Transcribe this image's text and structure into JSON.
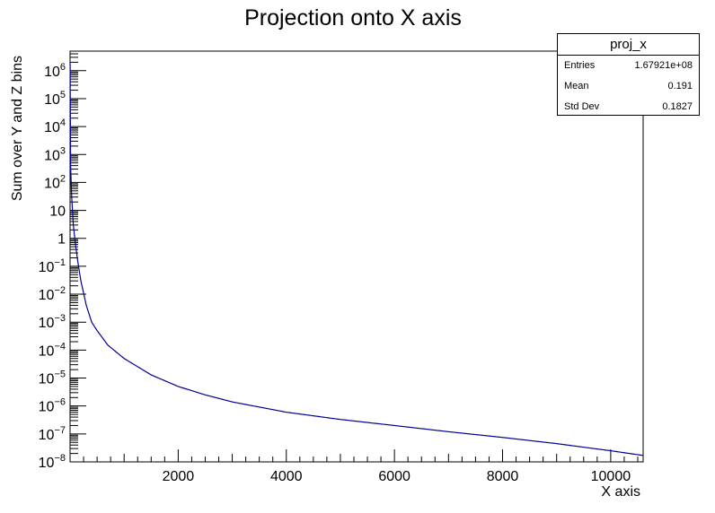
{
  "chart_data": {
    "type": "line",
    "title": "Projection onto X axis",
    "xlabel": "X axis",
    "ylabel": "Sum over Y and Z bins",
    "xlim": [
      0,
      10600
    ],
    "ylim": [
      1e-08,
      5000000.0
    ],
    "yscale": "log",
    "grid": false,
    "x_ticks": [
      2000,
      4000,
      6000,
      8000,
      10000
    ],
    "y_ticks": [
      {
        "value": 1e-08,
        "base": "10",
        "exp": "−8"
      },
      {
        "value": 1e-07,
        "base": "10",
        "exp": "−7"
      },
      {
        "value": 1e-06,
        "base": "10",
        "exp": "−6"
      },
      {
        "value": 1e-05,
        "base": "10",
        "exp": "−5"
      },
      {
        "value": 0.0001,
        "base": "10",
        "exp": "−4"
      },
      {
        "value": 0.001,
        "base": "10",
        "exp": "−3"
      },
      {
        "value": 0.01,
        "base": "10",
        "exp": "−2"
      },
      {
        "value": 0.1,
        "base": "10",
        "exp": "−1"
      },
      {
        "value": 1,
        "base": "1",
        "exp": ""
      },
      {
        "value": 10,
        "base": "10",
        "exp": ""
      },
      {
        "value": 100,
        "base": "10",
        "exp": "2"
      },
      {
        "value": 1000,
        "base": "10",
        "exp": "3"
      },
      {
        "value": 10000,
        "base": "10",
        "exp": "4"
      },
      {
        "value": 100000,
        "base": "10",
        "exp": "5"
      },
      {
        "value": 1000000,
        "base": "10",
        "exp": "6"
      }
    ],
    "series": [
      {
        "color": "#000099",
        "points": [
          [
            1,
            2000000
          ],
          [
            10,
            400
          ],
          [
            30,
            30
          ],
          [
            60,
            3
          ],
          [
            100,
            0.6
          ],
          [
            150,
            0.12
          ],
          [
            200,
            0.03
          ],
          [
            300,
            0.004
          ],
          [
            400,
            0.001
          ],
          [
            500,
            0.0005
          ],
          [
            700,
            0.00015
          ],
          [
            1000,
            5e-05
          ],
          [
            1500,
            1.3e-05
          ],
          [
            2000,
            5e-06
          ],
          [
            2500,
            2.5e-06
          ],
          [
            3000,
            1.4e-06
          ],
          [
            4000,
            6e-07
          ],
          [
            5000,
            3.3e-07
          ],
          [
            6000,
            2e-07
          ],
          [
            7000,
            1.2e-07
          ],
          [
            8000,
            7.5e-08
          ],
          [
            9000,
            4.5e-08
          ],
          [
            10000,
            2.5e-08
          ],
          [
            10600,
            1.7e-08
          ]
        ]
      }
    ]
  },
  "stats": {
    "title": "proj_x",
    "rows": [
      {
        "label": "Entries",
        "value": "1.67921e+08"
      },
      {
        "label": "Mean",
        "value": "0.191"
      },
      {
        "label": "Std Dev",
        "value": "0.1827"
      }
    ]
  }
}
